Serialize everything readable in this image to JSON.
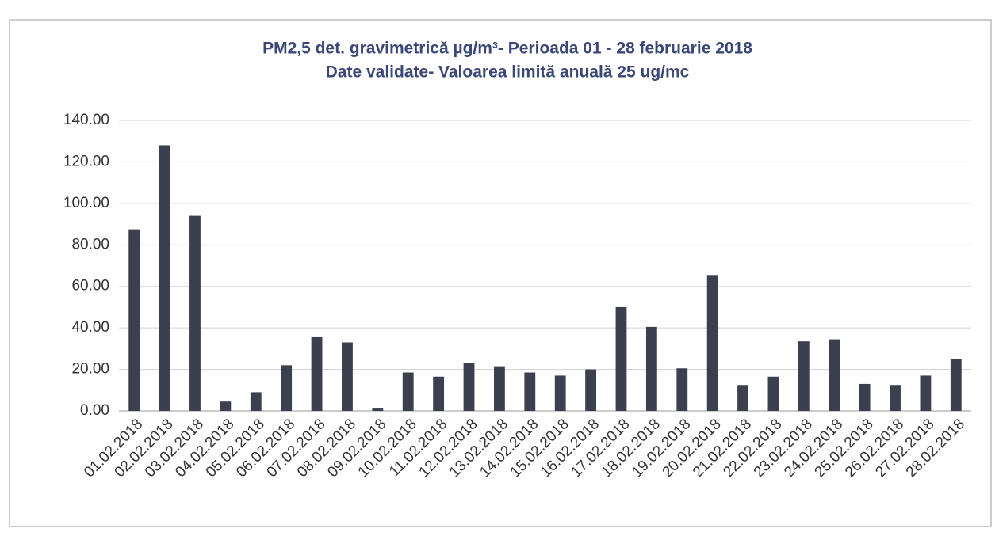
{
  "chart_data": {
    "type": "bar",
    "title": "PM2,5 det. gravimetrică µg/m³- Perioada 01 - 28 februarie 2018",
    "subtitle": "Date validate- Valoarea limită anuală 25  ug/mc",
    "categories": [
      "01.02.2018",
      "02.02.2018",
      "03.02.2018",
      "04.02.2018",
      "05.02.2018",
      "06.02.2018",
      "07.02.2018",
      "08.02.2018",
      "09.02.2018",
      "10.02.2018",
      "11.02.2018",
      "12.02.2018",
      "13.02.2018",
      "14.02.2018",
      "15.02.2018",
      "16.02.2018",
      "17.02.2018",
      "18.02.2018",
      "19.02.2018",
      "20.02.2018",
      "21.02.2018",
      "22.02.2018",
      "23.02.2018",
      "24.02.2018",
      "25.02.2018",
      "26.02.2018",
      "27.02.2018",
      "28.02.2018"
    ],
    "values": [
      87.5,
      128,
      94,
      4.5,
      9,
      22,
      35.5,
      33,
      1.5,
      18.5,
      16.5,
      23,
      21.5,
      18.5,
      17,
      20,
      50,
      40.5,
      20.5,
      65.5,
      12.5,
      16.5,
      33.5,
      34.5,
      13,
      12.5,
      17,
      25
    ],
    "color": "#3b3f4e",
    "ylim": [
      0,
      140
    ],
    "yticks": [
      {
        "value": 0,
        "label": "0.00"
      },
      {
        "value": 20,
        "label": "20.00"
      },
      {
        "value": 40,
        "label": "40.00"
      },
      {
        "value": 60,
        "label": "60.00"
      },
      {
        "value": 80,
        "label": "80.00"
      },
      {
        "value": 100,
        "label": "100.00"
      },
      {
        "value": 120,
        "label": "120.00"
      },
      {
        "value": 140,
        "label": "140.00"
      }
    ],
    "grid": true
  }
}
